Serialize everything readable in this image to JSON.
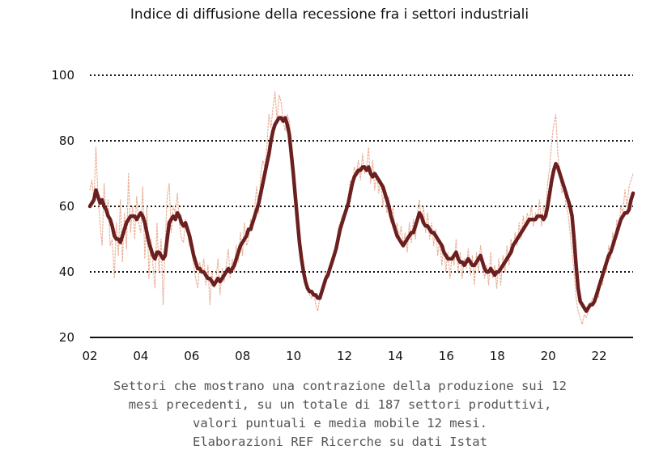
{
  "chart_data": {
    "type": "line",
    "title": "Indice di diffusione della recessione fra i settori industriali",
    "x_start": "2002-01",
    "x_end": "2023-05",
    "xticks": [
      "02",
      "04",
      "06",
      "08",
      "10",
      "12",
      "14",
      "16",
      "18",
      "20",
      "22"
    ],
    "xtick_years": [
      2002,
      2004,
      2006,
      2008,
      2010,
      2012,
      2014,
      2016,
      2018,
      2020,
      2022
    ],
    "yticks": [
      20,
      40,
      60,
      80,
      100
    ],
    "ylim": [
      20,
      100
    ],
    "grid": true,
    "colors": {
      "mm": "#6b1f1f",
      "raw": "#e9b29b",
      "grid": "#111111"
    },
    "series": [
      {
        "role": "moving-average",
        "values": [
          60,
          61,
          62,
          65,
          63,
          61,
          62,
          60,
          59,
          57,
          56,
          54,
          51,
          50,
          50,
          49,
          51,
          53,
          55,
          56,
          57,
          57,
          57,
          56,
          57,
          58,
          57,
          55,
          52,
          49,
          47,
          45,
          44,
          46,
          46,
          45,
          44,
          45,
          50,
          55,
          56,
          57,
          56,
          58,
          57,
          55,
          54,
          55,
          53,
          51,
          48,
          45,
          43,
          41,
          41,
          40,
          40,
          39,
          38,
          38,
          37,
          36,
          37,
          38,
          37,
          38,
          39,
          40,
          41,
          40,
          41,
          42,
          44,
          46,
          48,
          49,
          50,
          51,
          53,
          53,
          55,
          57,
          59,
          61,
          64,
          67,
          70,
          73,
          76,
          80,
          83,
          85,
          86,
          87,
          87,
          86,
          87,
          85,
          82,
          76,
          70,
          63,
          56,
          49,
          44,
          40,
          37,
          35,
          34,
          34,
          33,
          33,
          32,
          32,
          34,
          36,
          38,
          39,
          41,
          43,
          45,
          47,
          50,
          53,
          55,
          57,
          59,
          61,
          64,
          67,
          69,
          70,
          71,
          71,
          72,
          72,
          71,
          72,
          70,
          69,
          70,
          69,
          68,
          67,
          66,
          64,
          62,
          60,
          57,
          55,
          53,
          51,
          50,
          49,
          48,
          49,
          50,
          51,
          52,
          52,
          54,
          56,
          58,
          57,
          55,
          54,
          54,
          53,
          52,
          52,
          51,
          50,
          49,
          48,
          46,
          45,
          44,
          44,
          44,
          45,
          46,
          44,
          43,
          43,
          42,
          43,
          44,
          43,
          42,
          42,
          43,
          44,
          45,
          43,
          41,
          40,
          40,
          41,
          40,
          39,
          40,
          40,
          41,
          42,
          43,
          44,
          45,
          46,
          48,
          49,
          50,
          51,
          52,
          53,
          54,
          55,
          56,
          56,
          56,
          56,
          57,
          57,
          57,
          56,
          57,
          60,
          64,
          68,
          71,
          73,
          72,
          70,
          68,
          66,
          64,
          62,
          60,
          57,
          50,
          42,
          35,
          31,
          30,
          29,
          28,
          29,
          30,
          30,
          31,
          33,
          35,
          37,
          39,
          41,
          43,
          45,
          46,
          48,
          50,
          52,
          54,
          56,
          57,
          58,
          58,
          59,
          62,
          64
        ]
      },
      {
        "role": "raw",
        "values": [
          65,
          68,
          62,
          78,
          63,
          55,
          48,
          67,
          57,
          62,
          48,
          50,
          38,
          55,
          45,
          62,
          43,
          58,
          47,
          70,
          52,
          60,
          50,
          63,
          55,
          52,
          66,
          44,
          60,
          38,
          50,
          42,
          35,
          55,
          40,
          50,
          30,
          48,
          63,
          67,
          52,
          60,
          58,
          64,
          55,
          50,
          49,
          56,
          52,
          48,
          47,
          42,
          38,
          35,
          43,
          40,
          44,
          36,
          42,
          30,
          40,
          35,
          38,
          44,
          33,
          41,
          37,
          42,
          47,
          38,
          44,
          40,
          48,
          43,
          52,
          45,
          55,
          48,
          50,
          56,
          53,
          60,
          66,
          58,
          70,
          74,
          72,
          78,
          88,
          84,
          90,
          95,
          86,
          94,
          92,
          86,
          83,
          88,
          86,
          80,
          73,
          64,
          58,
          50,
          45,
          43,
          38,
          35,
          33,
          32,
          34,
          30,
          28,
          32,
          35,
          36,
          40,
          38,
          42,
          44,
          46,
          48,
          53,
          55,
          57,
          58,
          60,
          63,
          68,
          65,
          72,
          70,
          74,
          68,
          76,
          70,
          72,
          78,
          67,
          74,
          65,
          70,
          64,
          68,
          60,
          66,
          58,
          63,
          55,
          60,
          52,
          55,
          50,
          54,
          48,
          52,
          46,
          55,
          49,
          56,
          50,
          58,
          62,
          55,
          60,
          52,
          58,
          50,
          55,
          48,
          53,
          45,
          50,
          42,
          48,
          40,
          46,
          38,
          45,
          42,
          50,
          40,
          46,
          38,
          44,
          41,
          47,
          39,
          45,
          36,
          46,
          40,
          48,
          44,
          38,
          42,
          36,
          46,
          38,
          42,
          35,
          44,
          36,
          45,
          40,
          48,
          42,
          50,
          46,
          52,
          48,
          55,
          50,
          57,
          53,
          58,
          55,
          60,
          54,
          58,
          56,
          62,
          54,
          60,
          57,
          67,
          72,
          80,
          85,
          88,
          76,
          70,
          64,
          66,
          60,
          58,
          52,
          46,
          40,
          32,
          28,
          26,
          24,
          27,
          26,
          28,
          30,
          32,
          30,
          34,
          32,
          38,
          36,
          42,
          40,
          48,
          44,
          52,
          48,
          56,
          53,
          60,
          58,
          65,
          60,
          66,
          68,
          70
        ]
      }
    ]
  },
  "caption": {
    "line1": "Settori che mostrano una contrazione della produzione sui 12",
    "line2": "mesi precedenti, su un totale di 187 settori produttivi,",
    "line3": "valori puntuali e media mobile 12 mesi.",
    "line4": "Elaborazioni REF Ricerche su dati Istat"
  }
}
